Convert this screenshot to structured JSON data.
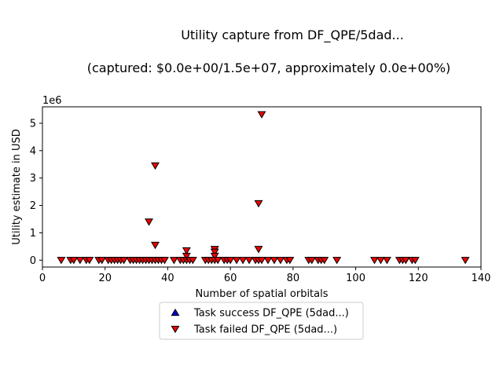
{
  "chart_data": {
    "type": "scatter",
    "title_line1": "Utility capture from DF_QPE/5dad...",
    "title_line2": "(captured: $0.0e+00/1.5e+07, approximately 0.0e+00%)",
    "xlabel": "Number of spatial orbitals",
    "ylabel": "Utility estimate in USD",
    "y_offset_label": "1e6",
    "xlim": [
      0,
      140
    ],
    "ylim": [
      -250000,
      5600000
    ],
    "x_ticks": [
      0,
      20,
      40,
      60,
      80,
      100,
      120,
      140
    ],
    "y_ticks": [
      0,
      1,
      2,
      3,
      4,
      5
    ],
    "y_tick_multiplier": 1000000,
    "grid": false,
    "legend_placement": "below-center",
    "series": [
      {
        "name": "Task success DF_QPE (5dad...)",
        "marker": "triangle-up",
        "color": "#0000cc",
        "x": [],
        "y": []
      },
      {
        "name": "Task failed DF_QPE (5dad...)",
        "marker": "triangle-down",
        "color": "#ee0000",
        "x": [
          6,
          9,
          10,
          12,
          14,
          15,
          18,
          19,
          21,
          22,
          23,
          24,
          25,
          26,
          28,
          29,
          30,
          31,
          32,
          33,
          34,
          34,
          35,
          36,
          36,
          36,
          37,
          38,
          39,
          42,
          44,
          45,
          46,
          46,
          46,
          47,
          48,
          52,
          53,
          54,
          55,
          55,
          55,
          55,
          56,
          58,
          59,
          60,
          62,
          64,
          66,
          68,
          69,
          69,
          69,
          70,
          70,
          72,
          74,
          76,
          78,
          79,
          85,
          86,
          88,
          89,
          90,
          94,
          106,
          108,
          110,
          114,
          115,
          116,
          118,
          119,
          135
        ],
        "y": [
          0,
          0,
          0,
          0,
          0,
          0,
          0,
          0,
          0,
          0,
          0,
          0,
          0,
          0,
          0,
          0,
          0,
          0,
          0,
          0,
          0,
          1400000,
          0,
          3450000,
          550000,
          0,
          0,
          0,
          0,
          0,
          0,
          0,
          0,
          150000,
          350000,
          0,
          0,
          0,
          0,
          0,
          400000,
          300000,
          150000,
          0,
          0,
          0,
          0,
          0,
          0,
          0,
          0,
          0,
          0,
          2070000,
          400000,
          5320000,
          0,
          0,
          0,
          0,
          0,
          0,
          0,
          0,
          0,
          0,
          0,
          0,
          0,
          0,
          0,
          0,
          0,
          0,
          0,
          0,
          0
        ]
      }
    ]
  }
}
